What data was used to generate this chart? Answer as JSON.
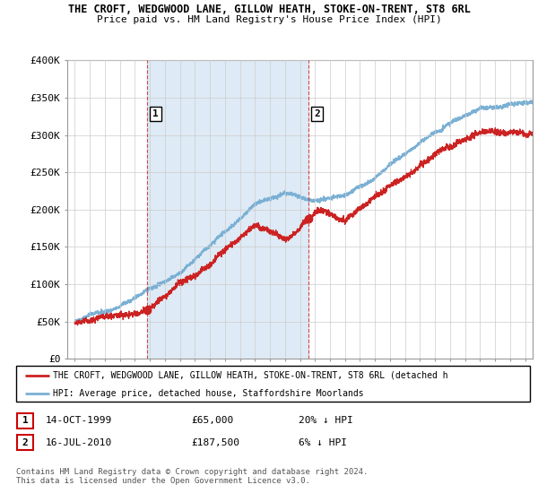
{
  "title1": "THE CROFT, WEDGWOOD LANE, GILLOW HEATH, STOKE-ON-TRENT, ST8 6RL",
  "title2": "Price paid vs. HM Land Registry's House Price Index (HPI)",
  "legend_line1": "THE CROFT, WEDGWOOD LANE, GILLOW HEATH, STOKE-ON-TRENT, ST8 6RL (detached h",
  "legend_line2": "HPI: Average price, detached house, Staffordshire Moorlands",
  "table_row1": [
    "1",
    "14-OCT-1999",
    "£65,000",
    "20% ↓ HPI"
  ],
  "table_row2": [
    "2",
    "16-JUL-2010",
    "£187,500",
    "6% ↓ HPI"
  ],
  "footer": "Contains HM Land Registry data © Crown copyright and database right 2024.\nThis data is licensed under the Open Government Licence v3.0.",
  "hpi_color": "#7ab0d4",
  "price_color": "#cc2222",
  "shade_color": "#deeaf5",
  "marker1_date": 1999.79,
  "marker1_price": 65000,
  "marker2_date": 2010.54,
  "marker2_price": 187500,
  "ylim": [
    0,
    400000
  ],
  "xlim": [
    1994.5,
    2025.5
  ],
  "yticks": [
    0,
    50000,
    100000,
    150000,
    200000,
    250000,
    300000,
    350000,
    400000
  ],
  "ytick_labels": [
    "£0",
    "£50K",
    "£100K",
    "£150K",
    "£200K",
    "£250K",
    "£300K",
    "£350K",
    "£400K"
  ],
  "xtick_years": [
    1995,
    1996,
    1997,
    1998,
    1999,
    2000,
    2001,
    2002,
    2003,
    2004,
    2005,
    2006,
    2007,
    2008,
    2009,
    2010,
    2011,
    2012,
    2013,
    2014,
    2015,
    2016,
    2017,
    2018,
    2019,
    2020,
    2021,
    2022,
    2023,
    2024,
    2025
  ],
  "bg_color": "#ffffff"
}
